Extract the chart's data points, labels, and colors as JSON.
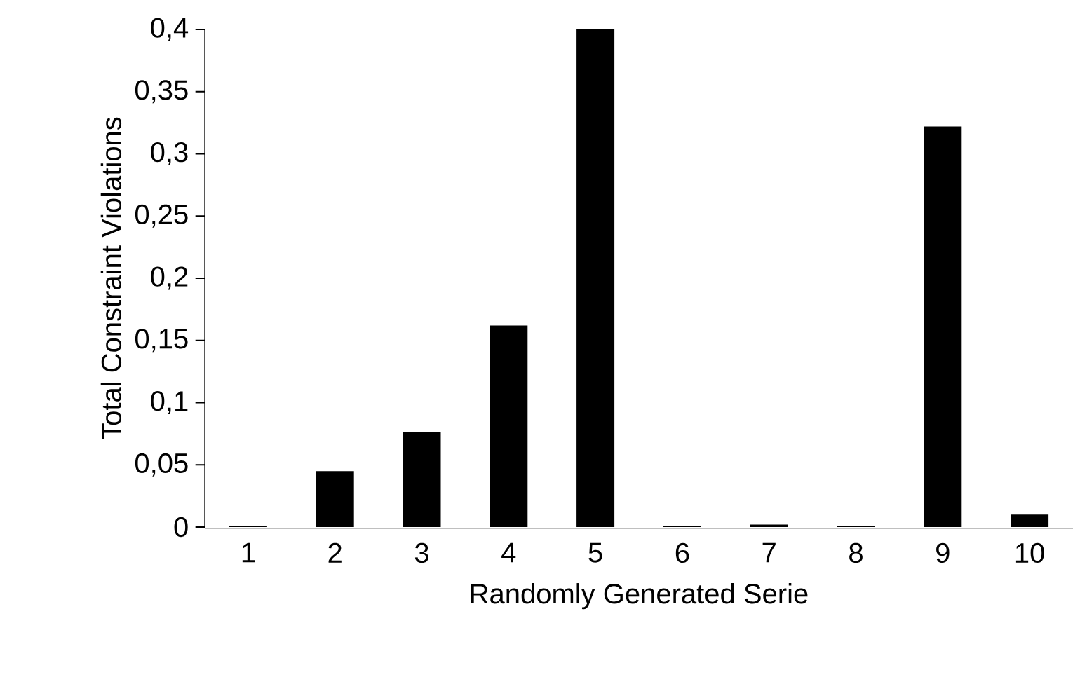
{
  "chart_data": {
    "type": "bar",
    "xlabel": "Randomly Generated Serie",
    "ylabel": "Total Constraint Violations",
    "categories": [
      "1",
      "2",
      "3",
      "4",
      "5",
      "6",
      "7",
      "8",
      "9",
      "10"
    ],
    "values": [
      0.001,
      0.045,
      0.076,
      0.162,
      0.4,
      0.001,
      0.002,
      0.001,
      0.322,
      0.01
    ],
    "color": "#000000",
    "ylim": [
      0,
      0.4
    ],
    "yticks": [
      0,
      {
        "value": 0.05,
        "label": "0,05"
      },
      {
        "value": 0.1,
        "label": "0,1"
      },
      {
        "value": 0.15,
        "label": "0,15"
      },
      {
        "value": 0.2,
        "label": "0,2"
      },
      {
        "value": 0.25,
        "label": "0,25"
      },
      {
        "value": 0.3,
        "label": "0,3"
      },
      {
        "value": 0.35,
        "label": "0,35"
      },
      {
        "value": 0.4,
        "label": "0,4"
      }
    ],
    "grid": false
  }
}
